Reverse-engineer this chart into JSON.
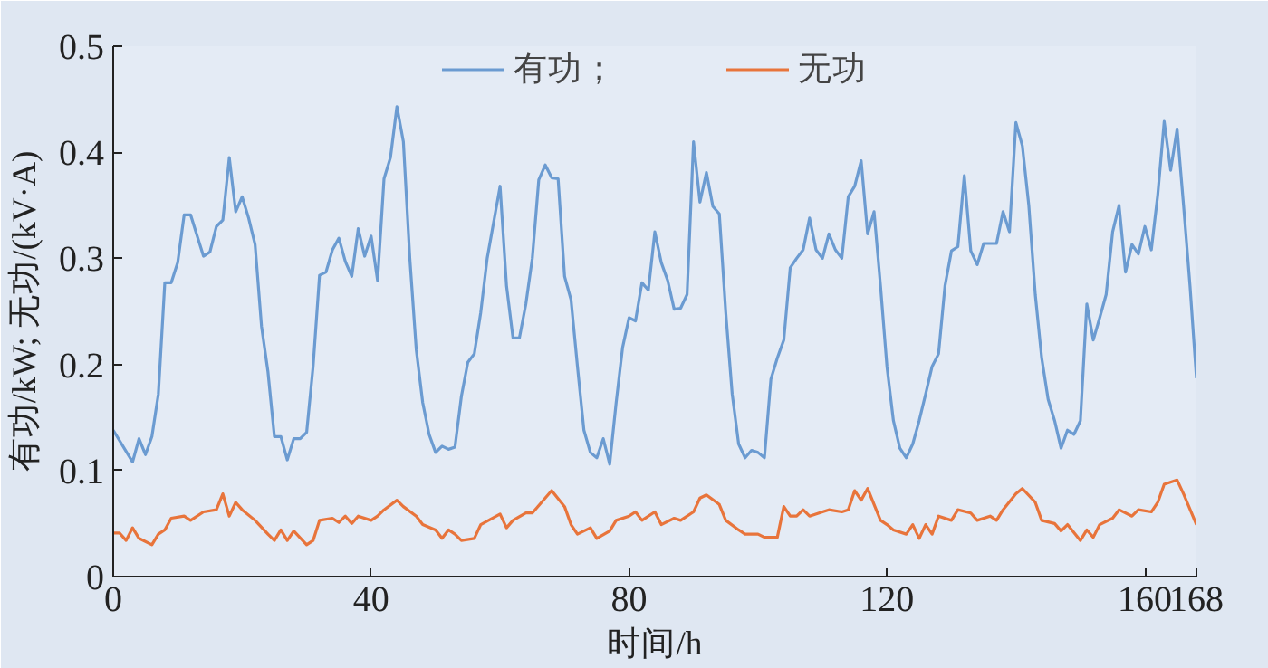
{
  "chart_data": {
    "type": "line",
    "xlabel": "时间/h",
    "ylabel": "有功/kW; 无功/(kV·A)",
    "xlim": [
      0,
      168
    ],
    "xticks": [
      0,
      40,
      80,
      120,
      160,
      168
    ],
    "ylim": [
      0,
      0.5
    ],
    "yticks": [
      0,
      0.1,
      0.2,
      0.3,
      0.4,
      0.5
    ],
    "grid": false,
    "legend": "top",
    "marker": "none",
    "line_style": "solid",
    "series": [
      {
        "name": "有功；",
        "color": "#6b9bd1",
        "x": [
          0,
          3,
          4,
          5,
          6,
          7,
          8,
          9,
          10,
          11,
          12,
          14,
          15,
          16,
          17,
          18,
          19,
          20,
          21,
          22,
          23,
          24,
          25,
          26,
          27,
          28,
          29,
          30,
          31,
          32,
          33,
          34,
          35,
          36,
          37,
          38,
          39,
          40,
          41,
          42,
          43,
          44,
          45,
          46,
          47,
          48,
          49,
          50,
          51,
          52,
          53,
          54,
          55,
          56,
          57,
          58,
          59,
          60,
          61,
          62,
          63,
          64,
          65,
          66,
          67,
          68,
          69,
          70,
          71,
          72,
          73,
          74,
          75,
          76,
          77,
          78,
          79,
          80,
          81,
          82,
          83,
          84,
          85,
          86,
          87,
          88,
          89,
          90,
          91,
          92,
          93,
          94,
          95,
          96,
          97,
          98,
          99,
          100,
          101,
          102,
          103,
          104,
          105,
          106,
          107,
          108,
          109,
          110,
          111,
          112,
          113,
          114,
          115,
          116,
          117,
          118,
          119,
          120,
          121,
          122,
          123,
          124,
          125,
          126,
          127,
          128,
          129,
          130,
          131,
          132,
          133,
          134,
          135,
          136,
          137,
          138,
          139,
          140,
          141,
          142,
          143,
          144,
          145,
          146,
          147,
          148,
          149,
          150,
          151,
          152,
          153,
          154,
          155,
          156,
          157,
          158,
          159,
          160,
          161,
          162,
          163,
          164,
          165,
          166,
          167,
          168
        ],
        "values": [
          0.138,
          0.108,
          0.13,
          0.115,
          0.132,
          0.172,
          0.277,
          0.277,
          0.296,
          0.341,
          0.341,
          0.302,
          0.306,
          0.33,
          0.336,
          0.395,
          0.344,
          0.358,
          0.338,
          0.313,
          0.236,
          0.193,
          0.132,
          0.132,
          0.11,
          0.13,
          0.13,
          0.136,
          0.198,
          0.284,
          0.287,
          0.308,
          0.319,
          0.297,
          0.283,
          0.328,
          0.302,
          0.321,
          0.279,
          0.375,
          0.395,
          0.443,
          0.41,
          0.3,
          0.214,
          0.164,
          0.134,
          0.117,
          0.123,
          0.12,
          0.122,
          0.17,
          0.202,
          0.21,
          0.249,
          0.3,
          0.334,
          0.368,
          0.274,
          0.225,
          0.225,
          0.257,
          0.3,
          0.374,
          0.388,
          0.376,
          0.375,
          0.283,
          0.261,
          0.198,
          0.138,
          0.117,
          0.112,
          0.13,
          0.106,
          0.164,
          0.216,
          0.244,
          0.241,
          0.277,
          0.27,
          0.325,
          0.296,
          0.279,
          0.252,
          0.253,
          0.266,
          0.41,
          0.353,
          0.381,
          0.349,
          0.342,
          0.249,
          0.172,
          0.125,
          0.112,
          0.119,
          0.117,
          0.112,
          0.186,
          0.206,
          0.223,
          0.291,
          0.3,
          0.308,
          0.338,
          0.308,
          0.3,
          0.323,
          0.308,
          0.3,
          0.358,
          0.368,
          0.392,
          0.323,
          0.344,
          0.274,
          0.198,
          0.147,
          0.121,
          0.112,
          0.125,
          0.147,
          0.172,
          0.198,
          0.21,
          0.274,
          0.307,
          0.311,
          0.378,
          0.307,
          0.294,
          0.314,
          0.314,
          0.314,
          0.344,
          0.325,
          0.428,
          0.406,
          0.35,
          0.266,
          0.206,
          0.167,
          0.147,
          0.121,
          0.138,
          0.134,
          0.147,
          0.257,
          0.223,
          0.244,
          0.266,
          0.325,
          0.35,
          0.287,
          0.313,
          0.304,
          0.33,
          0.308,
          0.36,
          0.429,
          0.383,
          0.422,
          0.35,
          0.274,
          0.187
        ]
      },
      {
        "name": "无功",
        "color": "#e8743b",
        "x": [
          0,
          1,
          2,
          3,
          4,
          6,
          7,
          8,
          9,
          11,
          12,
          14,
          16,
          17,
          18,
          19,
          20,
          22,
          24,
          25,
          26,
          27,
          28,
          30,
          31,
          32,
          34,
          35,
          36,
          37,
          38,
          40,
          41,
          42,
          44,
          45,
          47,
          48,
          50,
          51,
          52,
          53,
          54,
          56,
          57,
          60,
          61,
          62,
          64,
          65,
          67,
          68,
          70,
          71,
          72,
          74,
          75,
          77,
          78,
          80,
          81,
          82,
          84,
          85,
          87,
          88,
          90,
          91,
          92,
          94,
          95,
          97,
          98,
          100,
          101,
          103,
          104,
          105,
          106,
          107,
          108,
          110,
          111,
          113,
          114,
          115,
          116,
          117,
          119,
          120,
          121,
          123,
          124,
          125,
          126,
          127,
          128,
          130,
          131,
          133,
          134,
          136,
          137,
          138,
          140,
          141,
          143,
          144,
          146,
          147,
          148,
          150,
          151,
          152,
          153,
          155,
          156,
          158,
          159,
          161,
          162,
          163,
          165,
          166,
          168
        ],
        "values": [
          0.041,
          0.041,
          0.034,
          0.046,
          0.036,
          0.03,
          0.04,
          0.044,
          0.055,
          0.057,
          0.053,
          0.061,
          0.063,
          0.078,
          0.057,
          0.07,
          0.063,
          0.053,
          0.04,
          0.034,
          0.044,
          0.034,
          0.043,
          0.03,
          0.034,
          0.053,
          0.055,
          0.051,
          0.057,
          0.05,
          0.057,
          0.053,
          0.057,
          0.063,
          0.072,
          0.066,
          0.057,
          0.049,
          0.044,
          0.036,
          0.044,
          0.04,
          0.034,
          0.036,
          0.049,
          0.059,
          0.046,
          0.053,
          0.06,
          0.06,
          0.074,
          0.081,
          0.066,
          0.049,
          0.04,
          0.046,
          0.036,
          0.043,
          0.053,
          0.057,
          0.061,
          0.053,
          0.061,
          0.049,
          0.055,
          0.053,
          0.061,
          0.074,
          0.077,
          0.068,
          0.053,
          0.044,
          0.04,
          0.04,
          0.037,
          0.037,
          0.066,
          0.057,
          0.057,
          0.063,
          0.057,
          0.061,
          0.063,
          0.061,
          0.063,
          0.081,
          0.072,
          0.083,
          0.053,
          0.049,
          0.044,
          0.04,
          0.049,
          0.036,
          0.049,
          0.04,
          0.057,
          0.053,
          0.063,
          0.06,
          0.053,
          0.057,
          0.053,
          0.063,
          0.078,
          0.083,
          0.07,
          0.053,
          0.05,
          0.043,
          0.049,
          0.034,
          0.044,
          0.037,
          0.049,
          0.055,
          0.063,
          0.057,
          0.063,
          0.061,
          0.07,
          0.087,
          0.091,
          0.078,
          0.049
        ]
      }
    ]
  }
}
